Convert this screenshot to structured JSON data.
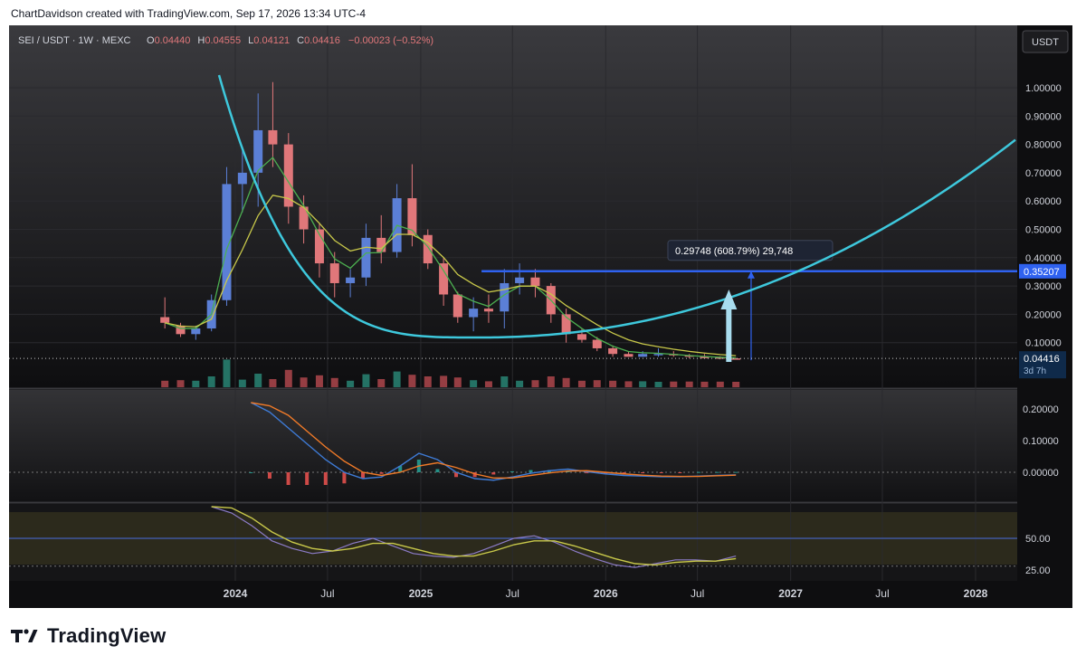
{
  "header": {
    "credit": "ChartDavidson created with TradingView.com, Sep 17, 2026 13:34 UTC-4"
  },
  "footer": {
    "brand": "TradingView"
  },
  "legend": {
    "symbol": "SEI / USDT · 1W · MEXC",
    "open_label": "O",
    "open": "0.04440",
    "high_label": "H",
    "high": "0.04555",
    "low_label": "L",
    "low": "0.04121",
    "close_label": "C",
    "close": "0.04416",
    "change": "−0.00023 (−0.52%)"
  },
  "currency_button": "USDT",
  "colors": {
    "up": "#5b7fd6",
    "down": "#e0777a",
    "arc": "#3ec8dc",
    "hline": "#2f62f0",
    "ema_fast": "#4caf50",
    "ema_slow": "#c8c84a",
    "macd": "#3e7bd6",
    "signal": "#f07a28",
    "rsi": "#c8c84a",
    "rsi_ma": "#8c7cc8",
    "arrow": "#a8dcee",
    "bg": "#0e0e10"
  },
  "price_axis": {
    "ticks": [
      "1.00000",
      "0.90000",
      "0.80000",
      "0.70000",
      "0.60000",
      "0.50000",
      "0.40000",
      "0.30000",
      "0.20000",
      "0.10000"
    ],
    "level_label": "0.35207",
    "current_label": "0.04416",
    "countdown": "3d 7h"
  },
  "macd_axis": {
    "ticks": [
      "0.20000",
      "0.10000",
      "0.00000"
    ]
  },
  "rsi_axis": {
    "ticks": [
      "50.00",
      "25.00"
    ]
  },
  "time_axis": {
    "labels": [
      "2024",
      "Jul",
      "2025",
      "Jul",
      "2026",
      "Jul",
      "2027",
      "Jul",
      "2028"
    ]
  },
  "measure_label": "0.29748 (608.79%) 29,748",
  "chart_data": [
    {
      "type": "candlestick",
      "title": "SEI / USDT · 1W · MEXC",
      "x_range": [
        "2023-08-15",
        "2028-09-01"
      ],
      "ylim": [
        0,
        1.1
      ],
      "grid": true,
      "series": [
        {
          "values": [
            [
              "2023-08-15",
              0.19,
              0.26,
              0.15,
              0.17
            ],
            [
              "2023-09-15",
              0.16,
              0.17,
              0.12,
              0.13
            ],
            [
              "2023-10-15",
              0.13,
              0.16,
              0.11,
              0.15
            ],
            [
              "2023-11-15",
              0.15,
              0.27,
              0.14,
              0.25
            ],
            [
              "2023-12-15",
              0.25,
              0.72,
              0.23,
              0.66
            ],
            [
              "2024-01-15",
              0.66,
              0.79,
              0.56,
              0.7
            ],
            [
              "2024-02-15",
              0.7,
              0.98,
              0.58,
              0.85
            ],
            [
              "2024-03-15",
              0.85,
              1.02,
              0.72,
              0.8
            ],
            [
              "2024-04-15",
              0.8,
              0.84,
              0.52,
              0.58
            ],
            [
              "2024-05-15",
              0.58,
              0.62,
              0.45,
              0.5
            ],
            [
              "2024-06-15",
              0.5,
              0.52,
              0.33,
              0.38
            ],
            [
              "2024-07-15",
              0.38,
              0.42,
              0.26,
              0.31
            ],
            [
              "2024-08-15",
              0.31,
              0.36,
              0.26,
              0.33
            ],
            [
              "2024-09-15",
              0.33,
              0.52,
              0.3,
              0.47
            ],
            [
              "2024-10-15",
              0.47,
              0.55,
              0.38,
              0.42
            ],
            [
              "2024-11-15",
              0.42,
              0.66,
              0.4,
              0.61
            ],
            [
              "2024-12-15",
              0.61,
              0.73,
              0.44,
              0.48
            ],
            [
              "2025-01-15",
              0.48,
              0.5,
              0.36,
              0.38
            ],
            [
              "2025-02-15",
              0.38,
              0.4,
              0.23,
              0.27
            ],
            [
              "2025-03-15",
              0.27,
              0.28,
              0.17,
              0.19
            ],
            [
              "2025-04-15",
              0.19,
              0.26,
              0.14,
              0.22
            ],
            [
              "2025-05-15",
              0.22,
              0.27,
              0.17,
              0.21
            ],
            [
              "2025-06-15",
              0.21,
              0.36,
              0.15,
              0.31
            ],
            [
              "2025-07-15",
              0.31,
              0.38,
              0.27,
              0.33
            ],
            [
              "2025-08-15",
              0.33,
              0.36,
              0.26,
              0.3
            ],
            [
              "2025-09-15",
              0.3,
              0.31,
              0.17,
              0.2
            ],
            [
              "2025-10-15",
              0.2,
              0.22,
              0.1,
              0.13
            ],
            [
              "2025-11-15",
              0.13,
              0.15,
              0.1,
              0.11
            ],
            [
              "2025-12-15",
              0.11,
              0.12,
              0.07,
              0.08
            ],
            [
              "2026-01-15",
              0.08,
              0.09,
              0.05,
              0.06
            ],
            [
              "2026-02-15",
              0.06,
              0.07,
              0.05,
              0.05
            ],
            [
              "2026-03-15",
              0.05,
              0.07,
              0.05,
              0.06
            ],
            [
              "2026-04-15",
              0.06,
              0.08,
              0.05,
              0.06
            ],
            [
              "2026-05-15",
              0.06,
              0.07,
              0.05,
              0.055
            ],
            [
              "2026-06-15",
              0.055,
              0.06,
              0.045,
              0.05
            ],
            [
              "2026-07-15",
              0.05,
              0.06,
              0.044,
              0.048
            ],
            [
              "2026-08-15",
              0.048,
              0.052,
              0.041,
              0.045
            ],
            [
              "2026-09-15",
              0.0444,
              0.04555,
              0.04121,
              0.04416
            ]
          ]
        }
      ],
      "level": 0.35207
    },
    {
      "type": "line",
      "title": "",
      "ylim": [
        -0.05,
        0.25
      ],
      "series": [
        {
          "name": "",
          "values": [
            0.22,
            0.19,
            0.14,
            0.09,
            0.04,
            0.0,
            -0.02,
            -0.015,
            0.02,
            0.06,
            0.04,
            0.0,
            -0.02,
            -0.025,
            -0.015,
            -0.003,
            0.005,
            0.01,
            0.002,
            -0.005,
            -0.01,
            -0.012,
            -0.014,
            -0.014,
            -0.012,
            -0.01,
            -0.008
          ]
        },
        {
          "name": "",
          "values": [
            0.22,
            0.21,
            0.18,
            0.13,
            0.08,
            0.035,
            0.0,
            -0.01,
            0.0,
            0.02,
            0.03,
            0.015,
            -0.005,
            -0.018,
            -0.018,
            -0.01,
            -0.002,
            0.004,
            0.005,
            0.0,
            -0.005,
            -0.009,
            -0.012,
            -0.013,
            -0.013,
            -0.011,
            -0.009
          ]
        }
      ]
    },
    {
      "type": "line",
      "title": "",
      "ylim": [
        15,
        75
      ],
      "series": [
        {
          "name": "",
          "values": [
            75,
            70,
            60,
            48,
            42,
            38,
            40,
            46,
            50,
            44,
            38,
            36,
            35,
            38,
            44,
            50,
            52,
            47,
            40,
            34,
            29,
            27,
            30,
            33,
            33,
            32,
            36
          ]
        },
        {
          "name": "",
          "values": [
            75,
            74,
            66,
            55,
            47,
            42,
            40,
            42,
            46,
            46,
            42,
            38,
            36,
            36,
            40,
            45,
            48,
            48,
            44,
            39,
            34,
            30,
            29,
            31,
            32,
            32,
            34
          ]
        }
      ]
    }
  ]
}
